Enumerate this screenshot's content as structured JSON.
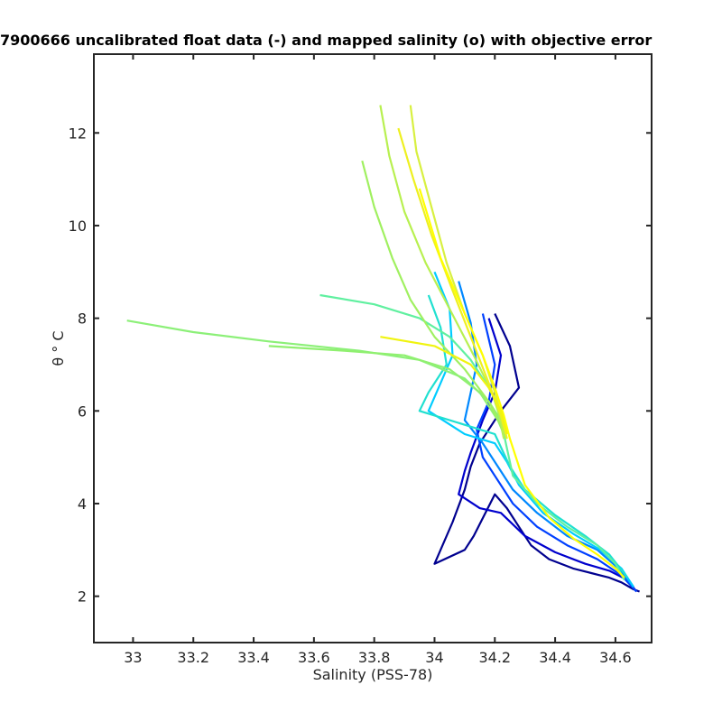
{
  "chart_data": {
    "type": "line",
    "title": "7900666 uncalibrated float data (-) and mapped salinity (o) with objective error",
    "xlabel": "Salinity (PSS-78)",
    "ylabel": "θ ° C",
    "xlim": [
      32.87,
      34.72
    ],
    "ylim": [
      1,
      13.7
    ],
    "x_ticks": [
      33,
      33.2,
      33.4,
      33.6,
      33.8,
      34,
      34.2,
      34.4,
      34.6
    ],
    "x_tick_labels": [
      "33",
      "33.2",
      "33.4",
      "33.6",
      "33.8",
      "34",
      "34.2",
      "34.4",
      "34.6"
    ],
    "y_ticks": [
      2,
      4,
      6,
      8,
      10,
      12
    ],
    "y_tick_labels": [
      "2",
      "4",
      "6",
      "8",
      "10",
      "12"
    ],
    "grid": false,
    "legend": "none",
    "colormap": [
      "#00008f",
      "#0000ff",
      "#0080ff",
      "#00ffff",
      "#80ff80",
      "#ffff00"
    ],
    "series": [
      {
        "color": "#00008f",
        "x": [
          34.2,
          34.25,
          34.28,
          34.22,
          34.15,
          34.12,
          34.1,
          34.06,
          34.0,
          34.1,
          34.13,
          34.2,
          34.24,
          34.28,
          34.32,
          34.38,
          34.46,
          34.52,
          34.58,
          34.62,
          34.66,
          34.68
        ],
        "y": [
          8.1,
          7.4,
          6.5,
          6.0,
          5.3,
          4.8,
          4.3,
          3.6,
          2.7,
          3.0,
          3.3,
          4.2,
          3.9,
          3.5,
          3.1,
          2.8,
          2.6,
          2.5,
          2.4,
          2.3,
          2.15,
          2.1
        ]
      },
      {
        "color": "#0000cd",
        "x": [
          34.18,
          34.22,
          34.2,
          34.16,
          34.12,
          34.1,
          34.08,
          34.15,
          34.22,
          34.3,
          34.4,
          34.5,
          34.58,
          34.64,
          34.67
        ],
        "y": [
          8.0,
          7.2,
          6.4,
          5.8,
          5.1,
          4.7,
          4.2,
          3.9,
          3.8,
          3.3,
          2.95,
          2.7,
          2.55,
          2.35,
          2.1
        ]
      },
      {
        "color": "#0040ff",
        "x": [
          34.16,
          34.2,
          34.18,
          34.14,
          34.16,
          34.2,
          34.26,
          34.34,
          34.44,
          34.54,
          34.62,
          34.67
        ],
        "y": [
          8.1,
          7.0,
          6.2,
          5.6,
          5.0,
          4.6,
          4.0,
          3.5,
          3.1,
          2.8,
          2.45,
          2.1
        ]
      },
      {
        "color": "#0088ff",
        "x": [
          34.08,
          34.12,
          34.14,
          34.12,
          34.1,
          34.16,
          34.21,
          34.26,
          34.34,
          34.44,
          34.54,
          34.61,
          34.66
        ],
        "y": [
          8.8,
          7.9,
          7.0,
          6.4,
          5.8,
          5.3,
          4.8,
          4.3,
          3.8,
          3.3,
          3.0,
          2.6,
          2.2
        ]
      },
      {
        "color": "#00ccff",
        "x": [
          34.0,
          34.05,
          34.06,
          34.02,
          33.98,
          34.1,
          34.2,
          34.24,
          34.28,
          34.36,
          34.46,
          34.55,
          34.62,
          34.66
        ],
        "y": [
          9.0,
          8.2,
          7.2,
          6.6,
          6.0,
          5.5,
          5.3,
          4.9,
          4.4,
          3.8,
          3.35,
          3.0,
          2.6,
          2.2
        ]
      },
      {
        "color": "#20e0d0",
        "x": [
          33.98,
          34.02,
          34.04,
          33.98,
          33.95,
          34.1,
          34.2,
          34.25,
          34.3,
          34.4,
          34.5,
          34.58,
          34.64
        ],
        "y": [
          8.5,
          7.8,
          7.0,
          6.4,
          6.0,
          5.7,
          5.5,
          4.8,
          4.3,
          3.75,
          3.3,
          2.9,
          2.4
        ]
      },
      {
        "color": "#60f0a0",
        "x": [
          33.62,
          33.8,
          33.95,
          34.05,
          34.12,
          34.18,
          34.22,
          34.23,
          34.26,
          34.34,
          34.44,
          34.54,
          34.6,
          34.63
        ],
        "y": [
          8.5,
          8.3,
          8.0,
          7.6,
          7.1,
          6.5,
          6.0,
          5.5,
          4.6,
          4.0,
          3.5,
          3.1,
          2.7,
          2.35
        ]
      },
      {
        "color": "#8cf078",
        "x": [
          32.98,
          33.2,
          33.45,
          33.75,
          33.95,
          34.1,
          34.18,
          34.22,
          34.23
        ],
        "y": [
          7.95,
          7.7,
          7.5,
          7.3,
          7.1,
          6.7,
          6.2,
          5.8,
          5.5
        ]
      },
      {
        "color": "#90f070",
        "x": [
          33.45,
          33.7,
          33.9,
          34.05,
          34.15,
          34.21,
          34.23
        ],
        "y": [
          7.4,
          7.3,
          7.2,
          6.9,
          6.4,
          5.8,
          5.5
        ]
      },
      {
        "color": "#a0f060",
        "x": [
          33.76,
          33.8,
          33.86,
          33.92,
          34.0,
          34.1,
          34.18,
          34.22,
          34.23
        ],
        "y": [
          11.4,
          10.4,
          9.3,
          8.4,
          7.6,
          6.9,
          6.2,
          5.7,
          5.4
        ]
      },
      {
        "color": "#b8f050",
        "x": [
          33.82,
          33.85,
          33.9,
          33.97,
          34.05,
          34.13,
          34.19,
          34.22,
          34.23
        ],
        "y": [
          12.6,
          11.5,
          10.3,
          9.2,
          8.2,
          7.2,
          6.4,
          5.8,
          5.4
        ]
      },
      {
        "color": "#d8f040",
        "x": [
          33.92,
          33.94,
          33.99,
          34.04,
          34.1,
          34.16,
          34.2,
          34.23,
          34.24
        ],
        "y": [
          12.6,
          11.6,
          10.4,
          9.2,
          8.1,
          7.2,
          6.4,
          5.7,
          5.4
        ]
      },
      {
        "color": "#eef020",
        "x": [
          33.88,
          33.93,
          33.99,
          34.06,
          34.12,
          34.18,
          34.22,
          34.24
        ],
        "y": [
          12.1,
          11.0,
          9.8,
          8.6,
          7.6,
          6.6,
          5.9,
          5.4
        ]
      },
      {
        "color": "#ffff00",
        "x": [
          33.95,
          34.02,
          34.1,
          34.16,
          34.2,
          34.23,
          34.25,
          34.3,
          34.38,
          34.46,
          34.54,
          34.6,
          34.63
        ],
        "y": [
          10.8,
          9.3,
          8.1,
          7.2,
          6.5,
          5.9,
          5.4,
          4.4,
          3.7,
          3.25,
          2.9,
          2.6,
          2.4
        ]
      },
      {
        "color": "#f0f410",
        "x": [
          33.82,
          34.0,
          34.12,
          34.18,
          34.22,
          34.24
        ],
        "y": [
          7.6,
          7.4,
          7.0,
          6.5,
          6.0,
          5.5
        ]
      }
    ]
  }
}
